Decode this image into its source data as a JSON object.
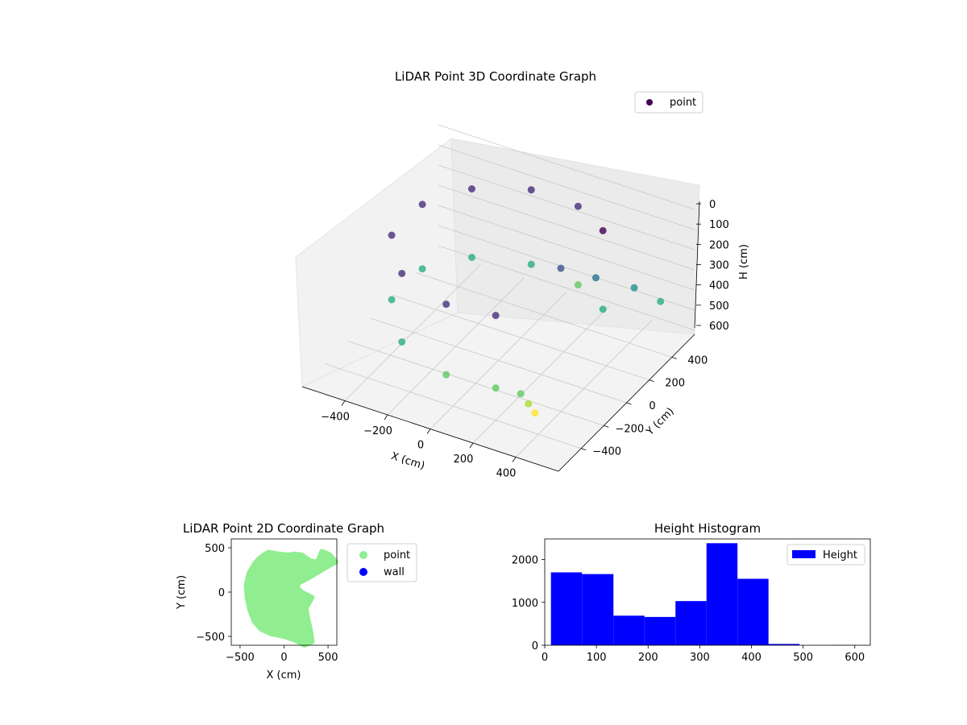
{
  "chart_data": [
    {
      "type": "scatter",
      "projection": "3d",
      "title": "LiDAR Point 3D Coordinate Graph",
      "xlabel": "X (cm)",
      "ylabel": "Y (cm)",
      "zlabel": "H (cm)",
      "xticks": [
        -400,
        -200,
        0,
        200,
        400
      ],
      "yticks": [
        -400,
        -200,
        0,
        200,
        400
      ],
      "zticks": [
        0,
        100,
        200,
        300,
        400,
        500,
        600
      ],
      "xlim": [
        -600,
        600
      ],
      "ylim": [
        -600,
        600
      ],
      "zlim": [
        0,
        620
      ],
      "z_inverted": true,
      "colormap": "viridis",
      "legend": {
        "entries": [
          "point"
        ],
        "placement": "top-right"
      },
      "grid": true,
      "series": [
        {
          "name": "point",
          "description_points": "ring of wall points, radius approx 450 cm, heights 0-450 cm, with ceiling points extending toward +Y",
          "sample_points": [
            {
              "x": -420,
              "y": 120,
              "h": 60
            },
            {
              "x": -420,
              "y": 120,
              "h": 380
            },
            {
              "x": -300,
              "y": 330,
              "h": 60
            },
            {
              "x": -300,
              "y": 330,
              "h": 400
            },
            {
              "x": -80,
              "y": 440,
              "h": 50
            },
            {
              "x": -80,
              "y": 440,
              "h": 420
            },
            {
              "x": 150,
              "y": 420,
              "h": 40
            },
            {
              "x": 150,
              "y": 420,
              "h": 430
            },
            {
              "x": 330,
              "y": 300,
              "h": 30
            },
            {
              "x": 330,
              "y": 300,
              "h": 420
            },
            {
              "x": -420,
              "y": -150,
              "h": 60
            },
            {
              "x": -420,
              "y": -150,
              "h": 380
            },
            {
              "x": -250,
              "y": -380,
              "h": 60
            },
            {
              "x": -250,
              "y": -380,
              "h": 400
            },
            {
              "x": 0,
              "y": -460,
              "h": 80
            },
            {
              "x": 0,
              "y": -460,
              "h": 430
            },
            {
              "x": 200,
              "y": -400,
              "h": 100
            },
            {
              "x": 200,
              "y": -400,
              "h": 460
            },
            {
              "x": 280,
              "y": -330,
              "h": 500
            },
            {
              "x": 300,
              "y": -300,
              "h": 560
            },
            {
              "x": 320,
              "y": -280,
              "h": 610
            },
            {
              "x": 250,
              "y": 80,
              "h": 120
            },
            {
              "x": 350,
              "y": 200,
              "h": 200
            },
            {
              "x": 450,
              "y": 350,
              "h": 300
            },
            {
              "x": 520,
              "y": 450,
              "h": 400
            }
          ]
        }
      ]
    },
    {
      "type": "scatter",
      "title": "LiDAR Point 2D Coordinate Graph",
      "xlabel": "X (cm)",
      "ylabel": "Y (cm)",
      "xticks": [
        -500,
        0,
        500
      ],
      "yticks": [
        -500,
        0,
        500
      ],
      "xlim": [
        -600,
        600
      ],
      "ylim": [
        -600,
        600
      ],
      "legend": {
        "entries": [
          "point",
          "wall"
        ],
        "placement": "outside-right"
      },
      "series": [
        {
          "name": "point",
          "color": "#90ee90",
          "outline": [
            [
              -180,
              450
            ],
            [
              -60,
              430
            ],
            [
              40,
              420
            ],
            [
              120,
              430
            ],
            [
              200,
              420
            ],
            [
              260,
              380
            ],
            [
              300,
              350
            ],
            [
              380,
              340
            ],
            [
              430,
              460
            ],
            [
              480,
              440
            ],
            [
              520,
              420
            ],
            [
              590,
              340
            ],
            [
              480,
              280
            ],
            [
              380,
              220
            ],
            [
              260,
              150
            ],
            [
              160,
              100
            ],
            [
              150,
              50
            ],
            [
              200,
              0
            ],
            [
              320,
              -60
            ],
            [
              250,
              -180
            ],
            [
              270,
              -300
            ],
            [
              300,
              -430
            ],
            [
              320,
              -560
            ],
            [
              230,
              -600
            ],
            [
              120,
              -540
            ],
            [
              0,
              -500
            ],
            [
              -150,
              -470
            ],
            [
              -260,
              -420
            ],
            [
              -340,
              -330
            ],
            [
              -390,
              -200
            ],
            [
              -420,
              -60
            ],
            [
              -430,
              80
            ],
            [
              -400,
              210
            ],
            [
              -330,
              330
            ],
            [
              -260,
              400
            ]
          ]
        },
        {
          "name": "wall",
          "color": "#0000ff",
          "points": []
        }
      ]
    },
    {
      "type": "bar",
      "histogram": true,
      "title": "Height Histogram",
      "xlabel": "",
      "ylabel": "",
      "xticks": [
        0,
        100,
        200,
        300,
        400,
        500,
        600
      ],
      "yticks": [
        0,
        1000,
        2000
      ],
      "xlim": [
        0,
        630
      ],
      "ylim": [
        0,
        2480
      ],
      "legend": {
        "entries": [
          "Height"
        ],
        "placement": "top-right"
      },
      "series": [
        {
          "name": "Height",
          "color": "#0000ff",
          "bin_edges": [
            12,
            72,
            133,
            193,
            253,
            313,
            373,
            433,
            493,
            553,
            613
          ],
          "counts": [
            1700,
            1660,
            690,
            660,
            1030,
            2380,
            1550,
            30,
            0,
            5
          ]
        }
      ]
    }
  ]
}
